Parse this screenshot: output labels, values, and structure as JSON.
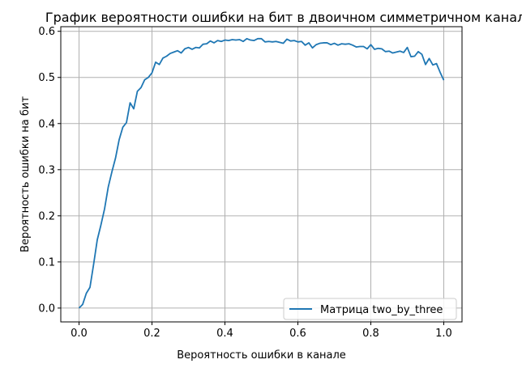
{
  "chart_data": {
    "type": "line",
    "title": "График вероятности ошибки на бит в двоичном симметричном канале",
    "xlabel": "Вероятность ошибки в канале",
    "ylabel": "Вероятность ошибки на бит",
    "xlim": [
      -0.05,
      1.05
    ],
    "ylim": [
      -0.03,
      0.61
    ],
    "xticks": [
      "0.0",
      "0.2",
      "0.4",
      "0.6",
      "0.8",
      "1.0"
    ],
    "yticks": [
      "0.0",
      "0.1",
      "0.2",
      "0.3",
      "0.4",
      "0.5",
      "0.6"
    ],
    "grid": true,
    "legend_position": "bottom-right",
    "series": [
      {
        "name": "Матрица two_by_three",
        "color": "#1f77b4",
        "x": [
          0.0,
          0.01,
          0.02,
          0.03,
          0.04,
          0.05,
          0.06,
          0.07,
          0.08,
          0.09,
          0.1,
          0.11,
          0.12,
          0.13,
          0.14,
          0.15,
          0.16,
          0.17,
          0.18,
          0.19,
          0.2,
          0.21,
          0.22,
          0.23,
          0.24,
          0.25,
          0.26,
          0.27,
          0.28,
          0.29,
          0.3,
          0.31,
          0.32,
          0.33,
          0.34,
          0.35,
          0.36,
          0.37,
          0.38,
          0.39,
          0.4,
          0.41,
          0.42,
          0.43,
          0.44,
          0.45,
          0.46,
          0.47,
          0.48,
          0.49,
          0.5,
          0.51,
          0.52,
          0.53,
          0.54,
          0.55,
          0.56,
          0.57,
          0.58,
          0.59,
          0.6,
          0.61,
          0.62,
          0.63,
          0.64,
          0.65,
          0.66,
          0.67,
          0.68,
          0.69,
          0.7,
          0.71,
          0.72,
          0.73,
          0.74,
          0.75,
          0.76,
          0.77,
          0.78,
          0.79,
          0.8,
          0.81,
          0.82,
          0.83,
          0.84,
          0.85,
          0.86,
          0.87,
          0.88,
          0.89,
          0.9,
          0.91,
          0.92,
          0.93,
          0.94,
          0.95,
          0.96,
          0.97,
          0.98,
          0.99,
          1.0
        ],
        "y": [
          0.0,
          0.008,
          0.032,
          0.045,
          0.095,
          0.148,
          0.18,
          0.215,
          0.262,
          0.295,
          0.325,
          0.365,
          0.392,
          0.402,
          0.445,
          0.432,
          0.47,
          0.478,
          0.495,
          0.5,
          0.51,
          0.533,
          0.528,
          0.542,
          0.546,
          0.552,
          0.555,
          0.558,
          0.553,
          0.562,
          0.565,
          0.561,
          0.565,
          0.564,
          0.572,
          0.573,
          0.579,
          0.575,
          0.58,
          0.578,
          0.581,
          0.58,
          0.582,
          0.581,
          0.582,
          0.578,
          0.584,
          0.581,
          0.58,
          0.584,
          0.584,
          0.577,
          0.578,
          0.577,
          0.578,
          0.576,
          0.574,
          0.583,
          0.579,
          0.58,
          0.577,
          0.578,
          0.57,
          0.575,
          0.564,
          0.571,
          0.574,
          0.575,
          0.575,
          0.571,
          0.574,
          0.57,
          0.573,
          0.572,
          0.573,
          0.57,
          0.566,
          0.567,
          0.567,
          0.562,
          0.571,
          0.561,
          0.563,
          0.562,
          0.556,
          0.557,
          0.553,
          0.555,
          0.557,
          0.554,
          0.565,
          0.545,
          0.546,
          0.556,
          0.55,
          0.528,
          0.541,
          0.527,
          0.53,
          0.511,
          0.494
        ]
      }
    ]
  }
}
